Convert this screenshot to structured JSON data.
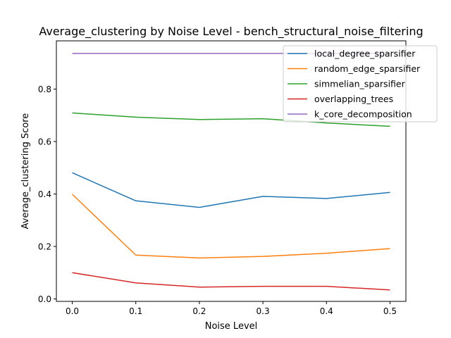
{
  "chart_data": {
    "type": "line",
    "title": "Average_clustering by Noise Level - bench_structural_noise_filtering",
    "xlabel": "Noise Level",
    "ylabel": "Average_clustering Score",
    "x": [
      0.0,
      0.1,
      0.2,
      0.3,
      0.4,
      0.5
    ],
    "xlim": [
      -0.025,
      0.525
    ],
    "ylim": [
      -0.0095,
      0.984
    ],
    "xticks": [
      "0.0",
      "0.1",
      "0.2",
      "0.3",
      "0.4",
      "0.5"
    ],
    "yticks": [
      "0.0",
      "0.2",
      "0.4",
      "0.6",
      "0.8"
    ],
    "grid": false,
    "legend_position": "top-right",
    "series": [
      {
        "name": "local_degree_sparsifier",
        "color": "#1f77b4",
        "values": [
          0.481,
          0.374,
          0.349,
          0.391,
          0.383,
          0.406
        ]
      },
      {
        "name": "random_edge_sparsifier",
        "color": "#ff7f0e",
        "values": [
          0.399,
          0.167,
          0.156,
          0.162,
          0.174,
          0.192
        ]
      },
      {
        "name": "simmelian_sparsifier",
        "color": "#2ca02c",
        "values": [
          0.709,
          0.693,
          0.684,
          0.687,
          0.671,
          0.658
        ]
      },
      {
        "name": "overlapping_trees",
        "color": "#d62728",
        "values": [
          0.1,
          0.061,
          0.045,
          0.048,
          0.048,
          0.034
        ]
      },
      {
        "name": "k_core_decomposition",
        "color": "#9467bd",
        "values": [
          0.936,
          0.936,
          0.936,
          0.936,
          0.936,
          0.936
        ]
      }
    ]
  }
}
